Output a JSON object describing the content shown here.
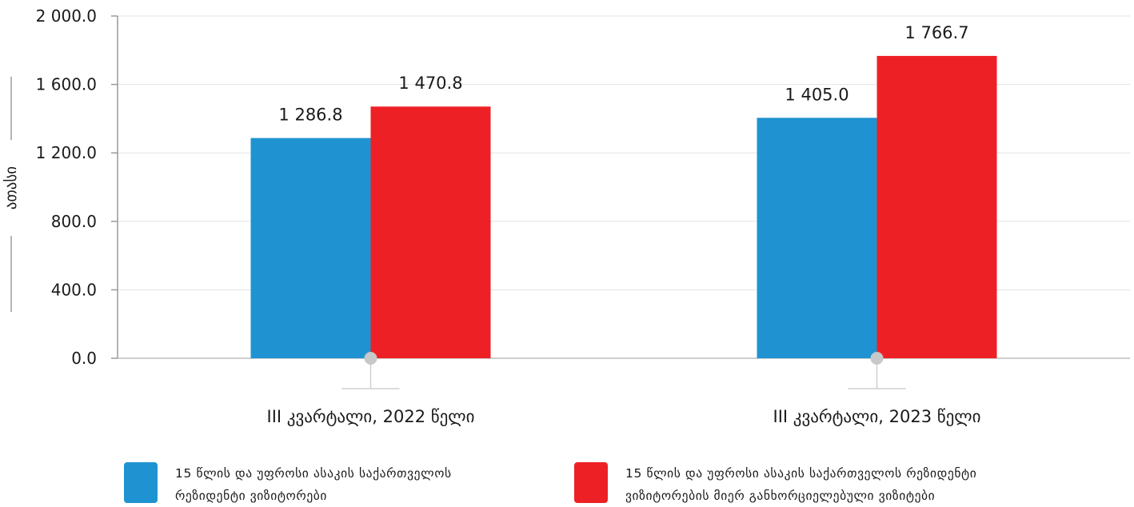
{
  "chart_data": {
    "type": "bar",
    "categories": [
      "III კვარტალი, 2022 წელი",
      "III კვარტალი, 2023 წელი"
    ],
    "series": [
      {
        "name": "15 წლის და უფროსი ასაკის საქართველოს რეზიდენტი ვიზიტორები",
        "values": [
          1286.8,
          1405.0
        ],
        "value_labels": [
          "1 286.8",
          "1 405.0"
        ],
        "color": "#1f93d1"
      },
      {
        "name": "15 წლის და უფროსი ასაკის საქართველოს რეზიდენტი ვიზიტორების მიერ განხორციელებული ვიზიტები",
        "values": [
          1470.8,
          1766.7
        ],
        "value_labels": [
          "1 470.8",
          "1 766.7"
        ],
        "color": "#ed2125"
      }
    ],
    "ylabel": "ათასი",
    "ylim": [
      0,
      2000
    ],
    "yticks": [
      0,
      400,
      800,
      1200,
      1600,
      2000
    ],
    "ytick_labels": [
      "0.0",
      "400.0",
      "800.0",
      "1 200.0",
      "1 600.0",
      "2 000.0"
    ],
    "grid": true,
    "legend_position": "bottom"
  },
  "legend": {
    "series1_line1": "15 წლის და უფროსი ასაკის საქართველოს",
    "series1_line2": "რეზიდენტი ვიზიტორები",
    "series2_line1": "15 წლის და უფროსი ასაკის საქართველოს რეზიდენტი",
    "series2_line2": "ვიზიტორების მიერ განხორციელებული ვიზიტები"
  }
}
